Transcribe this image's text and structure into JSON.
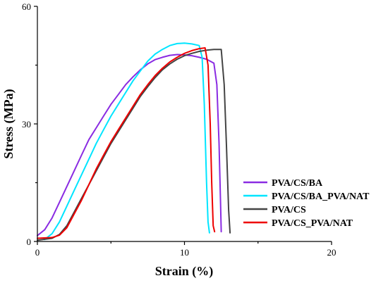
{
  "chart_data": {
    "type": "line",
    "xlabel": "Strain (%)",
    "ylabel": "Stress (MPa)",
    "xlim": [
      0,
      20
    ],
    "ylim": [
      0,
      60
    ],
    "xticks": [
      0,
      10,
      20
    ],
    "yticks": [
      0,
      30,
      60
    ],
    "grid": false,
    "legend_position": "bottom-right",
    "series": [
      {
        "name": "PVA/CS/BA",
        "color": "#8a2be2",
        "points": [
          [
            0,
            1.5
          ],
          [
            0.5,
            3
          ],
          [
            1,
            6
          ],
          [
            1.5,
            10
          ],
          [
            2,
            14
          ],
          [
            2.5,
            18
          ],
          [
            3,
            22
          ],
          [
            3.5,
            26
          ],
          [
            4,
            29
          ],
          [
            4.5,
            32
          ],
          [
            5,
            35
          ],
          [
            5.5,
            37.5
          ],
          [
            6,
            40
          ],
          [
            6.5,
            42
          ],
          [
            7,
            43.8
          ],
          [
            7.5,
            45.3
          ],
          [
            8,
            46.4
          ],
          [
            8.5,
            47
          ],
          [
            9,
            47.5
          ],
          [
            9.5,
            47.7
          ],
          [
            10,
            47.6
          ],
          [
            10.5,
            47.4
          ],
          [
            11,
            47
          ],
          [
            11.5,
            46.5
          ],
          [
            12,
            45.5
          ],
          [
            12.2,
            40
          ],
          [
            12.35,
            25
          ],
          [
            12.45,
            10
          ],
          [
            12.5,
            2.5
          ]
        ]
      },
      {
        "name": "PVA/CS/BA_PVA/NAT",
        "color": "#00e5ff",
        "points": [
          [
            0.5,
            0.5
          ],
          [
            1,
            2
          ],
          [
            1.5,
            5
          ],
          [
            2,
            9
          ],
          [
            2.5,
            13
          ],
          [
            3,
            17
          ],
          [
            3.5,
            21
          ],
          [
            4,
            25
          ],
          [
            4.5,
            28.5
          ],
          [
            5,
            32
          ],
          [
            5.5,
            35
          ],
          [
            6,
            38
          ],
          [
            6.5,
            41
          ],
          [
            7,
            43.5
          ],
          [
            7.5,
            46
          ],
          [
            8,
            47.8
          ],
          [
            8.5,
            49
          ],
          [
            9,
            50
          ],
          [
            9.5,
            50.5
          ],
          [
            10,
            50.6
          ],
          [
            10.5,
            50.4
          ],
          [
            11,
            50
          ],
          [
            11.2,
            47
          ],
          [
            11.35,
            35
          ],
          [
            11.5,
            15
          ],
          [
            11.6,
            5
          ],
          [
            11.7,
            2.2
          ]
        ]
      },
      {
        "name": "PVA/CS",
        "color": "#444444",
        "points": [
          [
            0,
            0.3
          ],
          [
            1,
            0.8
          ],
          [
            1.5,
            1.8
          ],
          [
            2,
            4
          ],
          [
            2.5,
            7.5
          ],
          [
            3,
            11
          ],
          [
            3.5,
            14.5
          ],
          [
            4,
            18
          ],
          [
            4.5,
            21.5
          ],
          [
            5,
            25
          ],
          [
            5.5,
            28
          ],
          [
            6,
            31
          ],
          [
            6.5,
            34
          ],
          [
            7,
            37
          ],
          [
            7.5,
            39.5
          ],
          [
            8,
            41.8
          ],
          [
            8.5,
            43.8
          ],
          [
            9,
            45.3
          ],
          [
            9.5,
            46.5
          ],
          [
            10,
            47.4
          ],
          [
            10.5,
            48
          ],
          [
            11,
            48.5
          ],
          [
            11.5,
            48.8
          ],
          [
            12,
            49
          ],
          [
            12.5,
            49
          ],
          [
            12.7,
            40
          ],
          [
            12.85,
            25
          ],
          [
            13,
            8
          ],
          [
            13.1,
            2.2
          ]
        ]
      },
      {
        "name": "PVA/CS_PVA/NAT",
        "color": "#ee0000",
        "points": [
          [
            0,
            0.8
          ],
          [
            1,
            1
          ],
          [
            1.5,
            1.6
          ],
          [
            2,
            3.5
          ],
          [
            2.5,
            7
          ],
          [
            3,
            10.5
          ],
          [
            3.5,
            14.5
          ],
          [
            4,
            18.5
          ],
          [
            4.5,
            22
          ],
          [
            5,
            25.5
          ],
          [
            5.5,
            28.5
          ],
          [
            6,
            31.5
          ],
          [
            6.5,
            34.5
          ],
          [
            7,
            37.5
          ],
          [
            7.5,
            40
          ],
          [
            8,
            42.3
          ],
          [
            8.5,
            44.2
          ],
          [
            9,
            45.8
          ],
          [
            9.5,
            47
          ],
          [
            10,
            48
          ],
          [
            10.5,
            48.7
          ],
          [
            11,
            49.2
          ],
          [
            11.4,
            49.4
          ],
          [
            11.6,
            45
          ],
          [
            11.75,
            30
          ],
          [
            11.85,
            15
          ],
          [
            11.95,
            4
          ],
          [
            12.05,
            2.5
          ]
        ]
      }
    ]
  }
}
